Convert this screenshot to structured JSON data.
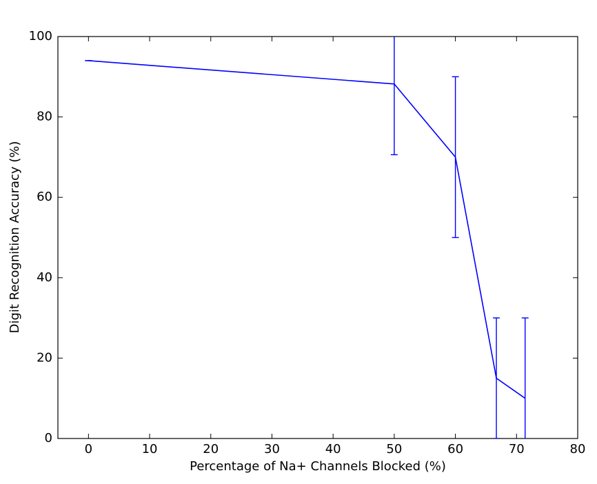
{
  "chart_data": {
    "type": "errorbar-line",
    "xlabel": "Percentage of Na+ Channels Blocked (%)",
    "ylabel": "Digit Recognition Accuracy (%)",
    "x": [
      0,
      50,
      60,
      66.7,
      71.4
    ],
    "values": [
      94,
      88.2,
      70,
      15,
      10
    ],
    "errors": [
      0,
      17.6,
      20,
      15,
      20
    ],
    "color": "#0000ff",
    "xlim": [
      -5,
      80
    ],
    "xticks": [
      0,
      10,
      20,
      30,
      40,
      50,
      60,
      70,
      80
    ],
    "ylim": [
      0,
      100
    ],
    "yticks": [
      0,
      20,
      40,
      60,
      80,
      100
    ]
  }
}
